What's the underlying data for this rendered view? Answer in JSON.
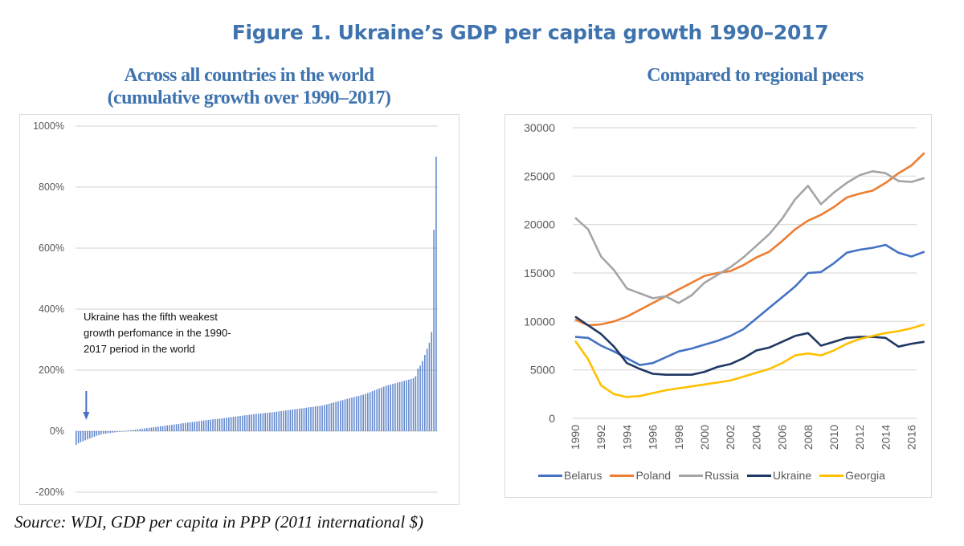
{
  "figure_title": "Figure 1.   Ukraine’s GDP per capita growth 1990–2017",
  "source": "Source: WDI, GDP per capita in PPP (2011 international $)",
  "chart_data": [
    {
      "type": "bar",
      "title_line1": "Across all countries in the world",
      "title_line2": "(cumulative growth over 1990–2017)",
      "xlabel": "",
      "ylabel": "",
      "ylim": [
        -200,
        1000
      ],
      "yticks": [
        -200,
        0,
        200,
        400,
        600,
        800,
        1000
      ],
      "ytick_labels": [
        "-200%",
        "0%",
        "200%",
        "400%",
        "600%",
        "800%",
        "1000%"
      ],
      "grid": true,
      "color": "#4472c4",
      "annotation": "Ukraine has the fifth weakest growth perfomance in the 1990-2017 period in the world",
      "annotation_arrow_index": 4,
      "values": [
        -45,
        -40,
        -36,
        -33,
        -30,
        -27,
        -24,
        -21,
        -18,
        -15,
        -13,
        -11,
        -9,
        -8,
        -7,
        -6,
        -5,
        -4,
        -3,
        -2,
        -1,
        0,
        1,
        2,
        3,
        4,
        5,
        6,
        7,
        8,
        9,
        10,
        11,
        12,
        13,
        14,
        15,
        16,
        17,
        18,
        19,
        20,
        21,
        22,
        23,
        24,
        25,
        26,
        27,
        28,
        29,
        30,
        31,
        32,
        33,
        34,
        35,
        36,
        37,
        38,
        39,
        40,
        40,
        41,
        42,
        43,
        44,
        45,
        46,
        47,
        48,
        49,
        50,
        51,
        52,
        53,
        54,
        55,
        56,
        57,
        57,
        58,
        59,
        60,
        60,
        61,
        62,
        63,
        64,
        65,
        66,
        67,
        68,
        69,
        70,
        71,
        72,
        73,
        74,
        75,
        76,
        77,
        78,
        79,
        80,
        81,
        82,
        83,
        84,
        86,
        88,
        90,
        92,
        94,
        96,
        98,
        100,
        102,
        104,
        106,
        108,
        110,
        112,
        114,
        116,
        118,
        120,
        122,
        125,
        128,
        131,
        134,
        137,
        140,
        143,
        146,
        149,
        151,
        153,
        155,
        157,
        159,
        161,
        163,
        165,
        167,
        169,
        171,
        174,
        180,
        205,
        215,
        230,
        250,
        270,
        290,
        325,
        660,
        900
      ]
    },
    {
      "type": "line",
      "title": "Compared to regional peers",
      "xlabel": "",
      "ylabel": "",
      "ylim": [
        0,
        30000
      ],
      "yticks": [
        0,
        5000,
        10000,
        15000,
        20000,
        25000,
        30000
      ],
      "xtick_labels": [
        "1990",
        "1992",
        "1994",
        "1996",
        "1998",
        "2000",
        "2002",
        "2004",
        "2006",
        "2008",
        "2010",
        "2012",
        "2014",
        "2016"
      ],
      "grid": true,
      "legend_position": "bottom",
      "x": [
        1990,
        1991,
        1992,
        1993,
        1994,
        1995,
        1996,
        1997,
        1998,
        1999,
        2000,
        2001,
        2002,
        2003,
        2004,
        2005,
        2006,
        2007,
        2008,
        2009,
        2010,
        2011,
        2012,
        2013,
        2014,
        2015,
        2016,
        2017
      ],
      "series": [
        {
          "name": "Belarus",
          "color": "#4472c4",
          "values": [
            8400,
            8300,
            7500,
            6900,
            6200,
            5500,
            5700,
            6300,
            6900,
            7200,
            7600,
            8000,
            8500,
            9200,
            10300,
            11400,
            12500,
            13600,
            15000,
            15100,
            16000,
            17100,
            17400,
            17600,
            17900,
            17100,
            16700,
            17200
          ]
        },
        {
          "name": "Poland",
          "color": "#ed7d31",
          "values": [
            10200,
            9600,
            9700,
            10000,
            10500,
            11200,
            11900,
            12600,
            13300,
            14000,
            14700,
            15000,
            15200,
            15800,
            16600,
            17200,
            18300,
            19500,
            20400,
            21000,
            21800,
            22800,
            23200,
            23500,
            24300,
            25300,
            26100,
            27400
          ]
        },
        {
          "name": "Russia",
          "color": "#a5a5a5",
          "values": [
            20700,
            19500,
            16700,
            15300,
            13400,
            12900,
            12400,
            12600,
            11900,
            12700,
            14000,
            14800,
            15600,
            16600,
            17800,
            19000,
            20600,
            22600,
            24000,
            22100,
            23300,
            24300,
            25100,
            25500,
            25300,
            24500,
            24400,
            24800
          ]
        },
        {
          "name": "Ukraine",
          "color": "#1f3864",
          "values": [
            10500,
            9600,
            8700,
            7400,
            5700,
            5100,
            4600,
            4500,
            4500,
            4500,
            4800,
            5300,
            5600,
            6200,
            7000,
            7300,
            7900,
            8500,
            8800,
            7500,
            7900,
            8300,
            8400,
            8400,
            8300,
            7400,
            7700,
            7900
          ]
        },
        {
          "name": "Georgia",
          "color": "#ffc000",
          "values": [
            8000,
            6100,
            3400,
            2500,
            2200,
            2300,
            2600,
            2900,
            3100,
            3300,
            3500,
            3700,
            3900,
            4300,
            4700,
            5100,
            5700,
            6500,
            6700,
            6500,
            7000,
            7700,
            8200,
            8500,
            8800,
            9000,
            9300,
            9700
          ]
        }
      ]
    }
  ]
}
